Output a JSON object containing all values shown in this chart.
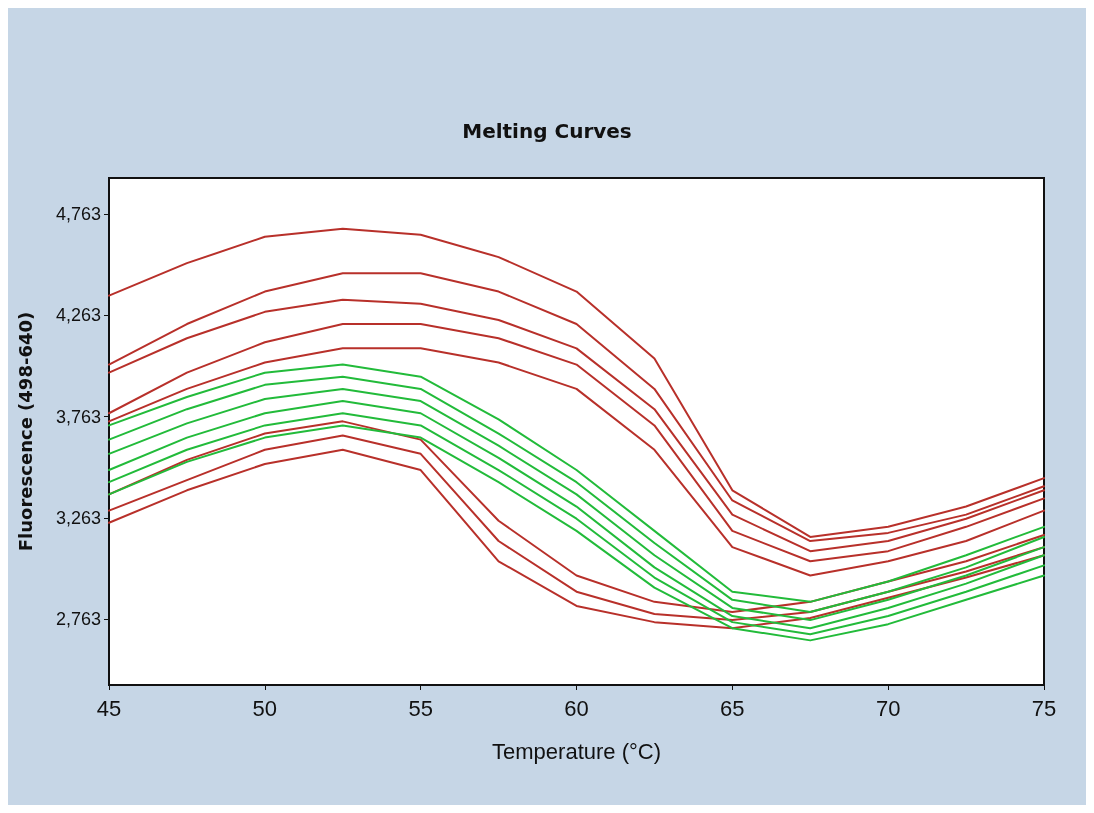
{
  "chart_data": {
    "type": "line",
    "title": "Melting Curves",
    "xlabel": "Temperature (°C)",
    "ylabel": "Fluorescence (498-640)",
    "x": [
      45,
      47.5,
      50,
      52.5,
      55,
      57.5,
      60,
      62.5,
      65,
      67.5,
      70,
      72.5,
      75
    ],
    "xlim": [
      45,
      75
    ],
    "xticks": [
      45,
      50,
      55,
      60,
      65,
      70,
      75
    ],
    "ylim": [
      2440,
      4940
    ],
    "yticks": [
      {
        "value": 2763,
        "label": "2,763"
      },
      {
        "value": 3263,
        "label": "3,263"
      },
      {
        "value": 3763,
        "label": "3,763"
      },
      {
        "value": 4263,
        "label": "4,263"
      },
      {
        "value": 4763,
        "label": "4,763"
      }
    ],
    "grid": false,
    "marker": "none",
    "line_style": "solid",
    "series": [
      {
        "color": "#b8302a",
        "values": [
          4360,
          4520,
          4650,
          4690,
          4660,
          4550,
          4380,
          4050,
          3400,
          3170,
          3220,
          3320,
          3460
        ]
      },
      {
        "color": "#b8302a",
        "values": [
          4020,
          4220,
          4380,
          4470,
          4470,
          4380,
          4220,
          3900,
          3350,
          3150,
          3190,
          3280,
          3420
        ]
      },
      {
        "color": "#b8302a",
        "values": [
          3980,
          4150,
          4280,
          4340,
          4320,
          4240,
          4100,
          3800,
          3280,
          3100,
          3150,
          3260,
          3400
        ]
      },
      {
        "color": "#b8302a",
        "values": [
          3780,
          3980,
          4130,
          4220,
          4220,
          4150,
          4020,
          3720,
          3200,
          3050,
          3100,
          3220,
          3360
        ]
      },
      {
        "color": "#b8302a",
        "values": [
          3740,
          3900,
          4030,
          4100,
          4100,
          4030,
          3900,
          3600,
          3120,
          2980,
          3050,
          3150,
          3300
        ]
      },
      {
        "color": "#b8302a",
        "values": [
          3380,
          3550,
          3680,
          3740,
          3650,
          3250,
          2980,
          2850,
          2800,
          2850,
          2950,
          3050,
          3180
        ]
      },
      {
        "color": "#b8302a",
        "values": [
          3300,
          3450,
          3600,
          3670,
          3580,
          3150,
          2900,
          2790,
          2760,
          2800,
          2900,
          3000,
          3120
        ]
      },
      {
        "color": "#b8302a",
        "values": [
          3240,
          3400,
          3530,
          3600,
          3500,
          3050,
          2830,
          2750,
          2720,
          2770,
          2870,
          2970,
          3080
        ]
      },
      {
        "color": "#22bb3a",
        "values": [
          3720,
          3860,
          3980,
          4020,
          3960,
          3750,
          3500,
          3200,
          2900,
          2850,
          2950,
          3080,
          3220
        ]
      },
      {
        "color": "#22bb3a",
        "values": [
          3650,
          3800,
          3920,
          3960,
          3900,
          3680,
          3440,
          3140,
          2860,
          2800,
          2900,
          3020,
          3170
        ]
      },
      {
        "color": "#22bb3a",
        "values": [
          3580,
          3730,
          3850,
          3900,
          3840,
          3620,
          3380,
          3080,
          2820,
          2760,
          2860,
          2980,
          3120
        ]
      },
      {
        "color": "#22bb3a",
        "values": [
          3500,
          3660,
          3780,
          3840,
          3780,
          3560,
          3320,
          3020,
          2780,
          2720,
          2820,
          2940,
          3080
        ]
      },
      {
        "color": "#22bb3a",
        "values": [
          3440,
          3600,
          3720,
          3780,
          3720,
          3500,
          3260,
          2970,
          2750,
          2690,
          2780,
          2900,
          3030
        ]
      },
      {
        "color": "#22bb3a",
        "values": [
          3380,
          3540,
          3660,
          3720,
          3660,
          3440,
          3200,
          2920,
          2720,
          2660,
          2740,
          2860,
          2980
        ]
      }
    ]
  }
}
